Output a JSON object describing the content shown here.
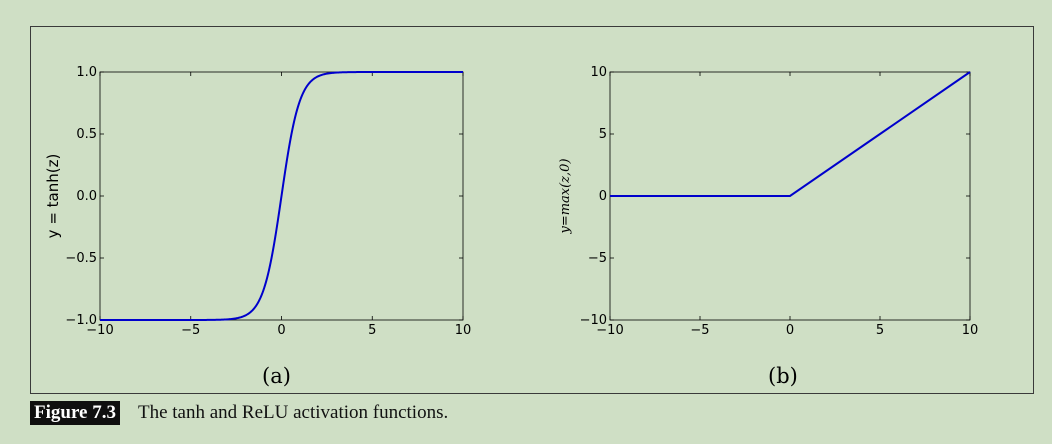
{
  "chart_data": [
    {
      "type": "line",
      "series": [
        {
          "function": "tanh",
          "color": "#0000cc"
        }
      ],
      "ylabel": "y = tanh(z)",
      "xlim": [
        -10,
        10
      ],
      "ylim": [
        -1.0,
        1.0
      ],
      "xticks": [
        "−10",
        "−5",
        "0",
        "5",
        "10"
      ],
      "yticks": [
        "1.0",
        "0.5",
        "0.0",
        "−0.5",
        "−1.0"
      ],
      "xtick_values": [
        -10,
        -5,
        0,
        5,
        10
      ],
      "ytick_values": [
        1.0,
        0.5,
        0.0,
        -0.5,
        -1.0
      ],
      "x": [
        -10,
        -8,
        -6,
        -4,
        -3,
        -2.5,
        -2,
        -1.5,
        -1,
        -0.5,
        0,
        0.5,
        1,
        1.5,
        2,
        2.5,
        3,
        4,
        6,
        8,
        10
      ],
      "y": [
        -1.0,
        -1.0,
        -1.0,
        -0.999,
        -0.995,
        -0.987,
        -0.964,
        -0.905,
        -0.762,
        -0.462,
        0.0,
        0.462,
        0.762,
        0.905,
        0.964,
        0.987,
        0.995,
        0.999,
        1.0,
        1.0,
        1.0
      ],
      "grid": false,
      "panel_label": "(a)"
    },
    {
      "type": "line",
      "series": [
        {
          "function": "relu",
          "color": "#0000cc"
        }
      ],
      "ylabel": "y=max(z,0)",
      "xlim": [
        -10,
        10
      ],
      "ylim": [
        -10,
        10
      ],
      "xticks": [
        "−10",
        "−5",
        "0",
        "5",
        "10"
      ],
      "yticks": [
        "10",
        "5",
        "0",
        "−5",
        "−10"
      ],
      "xtick_values": [
        -10,
        -5,
        0,
        5,
        10
      ],
      "ytick_values": [
        10,
        5,
        0,
        -5,
        -10
      ],
      "x": [
        -10,
        -5,
        0,
        5,
        10
      ],
      "y": [
        0,
        0,
        0,
        5,
        10
      ],
      "grid": false,
      "panel_label": "(b)"
    }
  ],
  "caption": {
    "figure_tag": "Figure 7.3",
    "text": "The tanh and ReLU activation functions."
  }
}
